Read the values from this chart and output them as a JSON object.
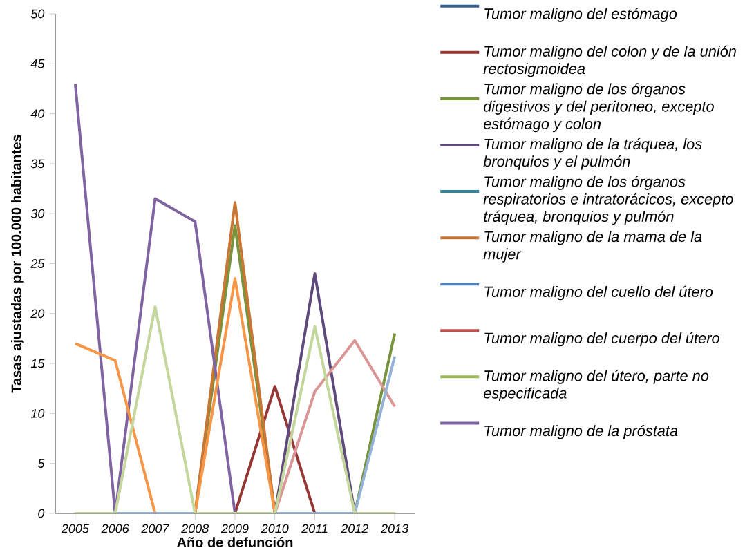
{
  "chart_data": {
    "type": "line",
    "xlabel": "Año de defunción",
    "ylabel": "Tasas ajustadas por 100.000 habitantes",
    "categories": [
      "2005",
      "2006",
      "2007",
      "2008",
      "2009",
      "2010",
      "2011",
      "2012",
      "2013"
    ],
    "ylim": [
      0,
      50
    ],
    "yticks": [
      0,
      5,
      10,
      15,
      20,
      25,
      30,
      35,
      40,
      45,
      50
    ],
    "grid": false,
    "legend": "right",
    "line_style": "solid",
    "series": [
      {
        "name": "Tumor maligno del estómago",
        "color": "#376092",
        "values": [
          null,
          null,
          null,
          null,
          null,
          null,
          null,
          null,
          null
        ]
      },
      {
        "name": "Tumor maligno del colon y de la unión rectosigmoidea",
        "color": "#953735",
        "values": [
          null,
          null,
          null,
          null,
          0,
          12.7,
          0,
          null,
          0
        ]
      },
      {
        "name": "Tumor maligno de los órganos digestivos y del peritoneo, excepto estómago y colon",
        "color": "#77933c",
        "values": [
          0,
          0,
          0,
          0,
          28.8,
          0,
          0,
          0,
          18.0
        ]
      },
      {
        "name": "Tumor maligno de la tráquea, los bronquios y el pulmón",
        "color": "#604a7b",
        "values": [
          0,
          0,
          0,
          0,
          0,
          0,
          24.0,
          0,
          0
        ]
      },
      {
        "name": "Tumor maligno de los órganos respiratorios e intratorácicos, excepto tráquea, bronquios y pulmón",
        "color": "#31859c",
        "values": [
          null,
          null,
          null,
          null,
          null,
          null,
          null,
          null,
          null
        ]
      },
      {
        "name": "Tumor maligno de la mama de la mujer",
        "color": "#c77634",
        "values": [
          0,
          0,
          0,
          0,
          31.1,
          0,
          0,
          0,
          0
        ]
      },
      {
        "name": "Tumor maligno del cuello del útero",
        "color": "#4f81bd",
        "values": [
          null,
          null,
          null,
          null,
          null,
          null,
          null,
          null,
          null
        ]
      },
      {
        "name": "Tumor maligno del cuerpo del útero",
        "color": "#c0504d",
        "values": [
          null,
          null,
          null,
          null,
          null,
          null,
          null,
          null,
          null
        ]
      },
      {
        "name": "Tumor maligno del útero, parte no especificada",
        "color": "#9bbb59",
        "values": [
          null,
          null,
          null,
          null,
          null,
          null,
          null,
          null,
          null
        ]
      },
      {
        "name": "Tumor maligno de la próstata",
        "color": "#8064a2",
        "values": [
          43.0,
          0,
          31.5,
          29.2,
          0,
          0,
          0,
          0,
          0
        ]
      },
      {
        "color": "#f79646",
        "values": [
          17.0,
          15.3,
          0,
          0,
          23.5,
          0,
          0,
          null,
          null
        ]
      },
      {
        "color": "#d99694",
        "values": [
          0,
          0,
          0,
          0,
          0,
          0,
          12.2,
          17.3,
          10.7
        ]
      },
      {
        "color": "#95b3d7",
        "values": [
          0,
          0,
          0,
          0,
          0,
          0,
          0,
          0,
          15.7
        ]
      },
      {
        "color": "#c3d69b",
        "values": [
          0,
          0,
          20.7,
          0,
          0,
          0,
          18.7,
          0,
          0
        ]
      }
    ]
  }
}
